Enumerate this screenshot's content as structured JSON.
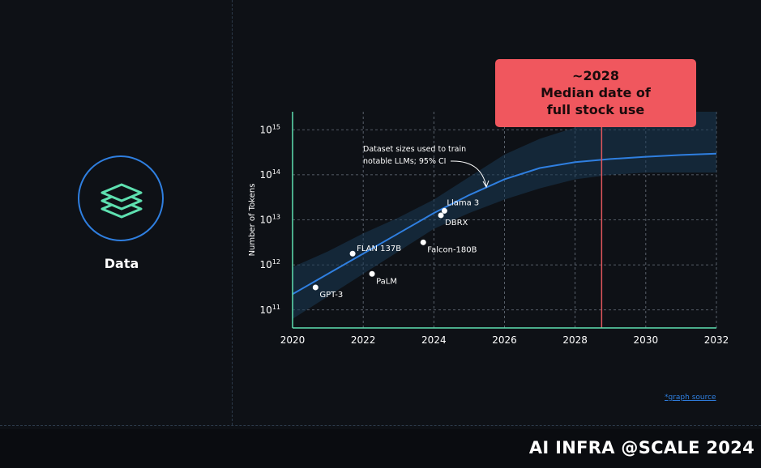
{
  "slide": {
    "icon": "layers-icon",
    "label": "Data",
    "source_link": "*graph source",
    "event_title": "AI INFRA @SCALE 2024",
    "colors": {
      "background": "#0e1116",
      "accent_blue": "#2f7fe0",
      "icon_green": "#5ee0b0",
      "callout": "#f0575e"
    }
  },
  "callout": {
    "line1": "~2028",
    "line2": "Median date of",
    "line3": "full stock use"
  },
  "chart_data": {
    "type": "line",
    "ylabel": "Number of Tokens",
    "xlabel": "",
    "x_ticks": [
      "2020",
      "2022",
      "2024",
      "2026",
      "2028",
      "2030",
      "2032"
    ],
    "xlim": [
      2020,
      2032
    ],
    "y_ticks": [
      {
        "base": "10",
        "exp": "11",
        "value_log10": 11
      },
      {
        "base": "10",
        "exp": "12",
        "value_log10": 12
      },
      {
        "base": "10",
        "exp": "13",
        "value_log10": 13
      },
      {
        "base": "10",
        "exp": "14",
        "value_log10": 14
      },
      {
        "base": "10",
        "exp": "15",
        "value_log10": 15
      }
    ],
    "ylim_log10": [
      10.6,
      15.4
    ],
    "grid": true,
    "median_line": {
      "name": "Dataset sizes used to train notable LLMs; 95% CI",
      "x": [
        2020,
        2021,
        2022,
        2023,
        2024,
        2025,
        2026,
        2027,
        2028,
        2029,
        2030,
        2031,
        2032
      ],
      "y_log10": [
        11.35,
        11.8,
        12.25,
        12.7,
        13.15,
        13.55,
        13.9,
        14.15,
        14.28,
        14.35,
        14.4,
        14.44,
        14.47
      ]
    },
    "ci_band": {
      "x": [
        2020,
        2021,
        2022,
        2023,
        2024,
        2025,
        2026,
        2027,
        2028,
        2029,
        2030,
        2031,
        2032
      ],
      "upper_log10": [
        11.95,
        12.3,
        12.7,
        13.05,
        13.45,
        13.95,
        14.45,
        14.8,
        15.05,
        15.25,
        15.35,
        15.4,
        15.4
      ],
      "lower_log10": [
        10.8,
        11.3,
        11.8,
        12.3,
        12.8,
        13.15,
        13.45,
        13.7,
        13.9,
        14.0,
        14.05,
        14.05,
        14.05
      ]
    },
    "points": [
      {
        "label": "GPT-3",
        "x": 2020.65,
        "y_log10": 11.5,
        "label_side": "below-right"
      },
      {
        "label": "FLAN 137B",
        "x": 2021.7,
        "y_log10": 12.25,
        "label_side": "right-up"
      },
      {
        "label": "PaLM",
        "x": 2022.25,
        "y_log10": 11.8,
        "label_side": "below-right"
      },
      {
        "label": "Falcon-180B",
        "x": 2023.7,
        "y_log10": 12.5,
        "label_side": "below-right"
      },
      {
        "label": "DBRX",
        "x": 2024.2,
        "y_log10": 13.1,
        "label_side": "below-right"
      },
      {
        "label": "Llama 3",
        "x": 2024.3,
        "y_log10": 13.2,
        "label_side": "above-right"
      }
    ],
    "annotation": {
      "line1": "Dataset sizes used to train",
      "line2": "notable LLMs; 95% CI"
    },
    "vertical_marker_x": 2028.75
  }
}
